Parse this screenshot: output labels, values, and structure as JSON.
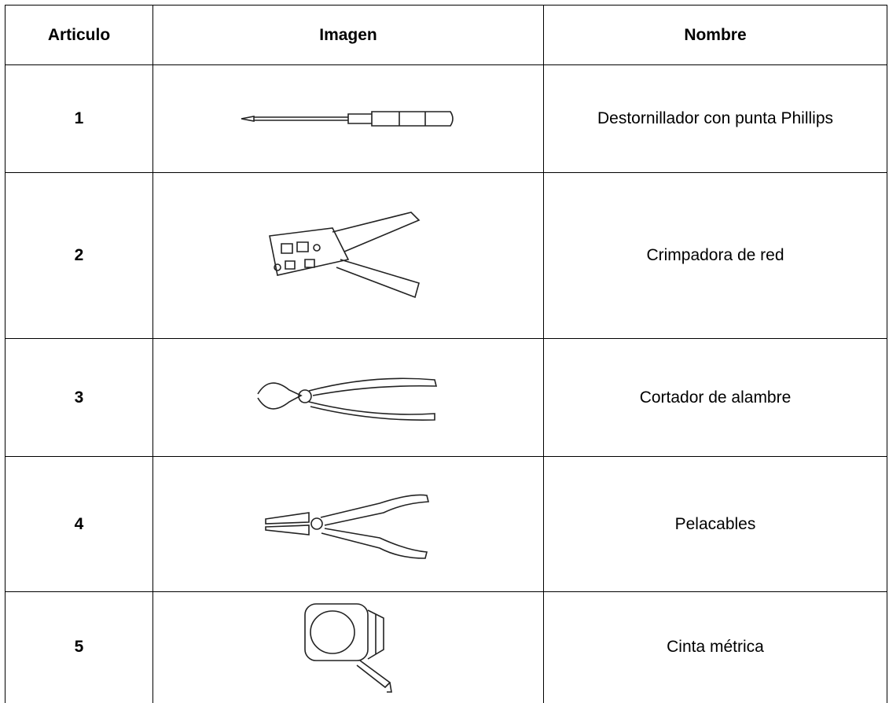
{
  "table": {
    "columns": [
      "Articulo",
      "Imagen",
      "Nombre"
    ],
    "rows": [
      {
        "article": "1",
        "name": "Destornillador con punta Phillips"
      },
      {
        "article": "2",
        "name": "Crimpadora de red"
      },
      {
        "article": "3",
        "name": "Cortador de alambre"
      },
      {
        "article": "4",
        "name": "Pelacables"
      },
      {
        "article": "5",
        "name": "Cinta métrica"
      }
    ]
  }
}
